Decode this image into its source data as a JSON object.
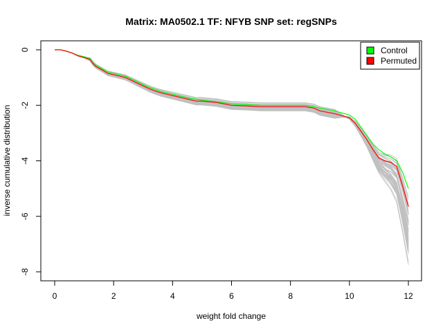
{
  "chart_data": {
    "type": "line",
    "title": "Matrix: MA0502.1 TF: NFYB SNP set: regSNPs",
    "xlabel": "weight fold change",
    "ylabel": "inverse cumulative distribution",
    "xlim": [
      0,
      12
    ],
    "ylim": [
      -8,
      0
    ],
    "x_ticks": [
      "0",
      "2",
      "4",
      "6",
      "8",
      "10",
      "12"
    ],
    "y_ticks": [
      "0",
      "-2",
      "-4",
      "-6",
      "-8"
    ],
    "grid": false,
    "legend_position": "top-right",
    "legend": [
      {
        "label": "Control",
        "color": "#00ff00"
      },
      {
        "label": "Permuted",
        "color": "#ff0000"
      }
    ],
    "series": [
      {
        "name": "Control",
        "color": "#00ff00",
        "x": [
          0,
          0.2,
          0.4,
          0.6,
          0.8,
          1.0,
          1.2,
          1.3,
          1.4,
          1.6,
          1.8,
          2.0,
          2.2,
          2.4,
          2.6,
          2.8,
          3.0,
          3.2,
          3.4,
          3.6,
          3.8,
          4.0,
          4.2,
          4.4,
          4.6,
          4.8,
          5.0,
          5.5,
          6.0,
          6.5,
          7.0,
          7.5,
          8.0,
          8.5,
          8.8,
          9.0,
          9.5,
          10.0,
          10.2,
          10.4,
          10.6,
          10.8,
          11.0,
          11.2,
          11.4,
          11.6,
          11.8,
          12.0
        ],
        "y": [
          0,
          0,
          -0.05,
          -0.12,
          -0.2,
          -0.25,
          -0.32,
          -0.45,
          -0.55,
          -0.68,
          -0.8,
          -0.85,
          -0.9,
          -0.95,
          -1.05,
          -1.15,
          -1.25,
          -1.35,
          -1.42,
          -1.5,
          -1.55,
          -1.6,
          -1.65,
          -1.7,
          -1.75,
          -1.78,
          -1.82,
          -1.88,
          -1.95,
          -1.98,
          -2.0,
          -2.0,
          -2.0,
          -2.0,
          -2.05,
          -2.1,
          -2.2,
          -2.35,
          -2.5,
          -2.8,
          -3.1,
          -3.4,
          -3.6,
          -3.75,
          -3.85,
          -4.0,
          -4.4,
          -5.0
        ]
      },
      {
        "name": "Permuted",
        "color": "#ff0000",
        "x": [
          0,
          0.2,
          0.4,
          0.6,
          0.8,
          1.0,
          1.2,
          1.3,
          1.4,
          1.6,
          1.8,
          2.0,
          2.2,
          2.4,
          2.6,
          2.8,
          3.0,
          3.2,
          3.4,
          3.6,
          3.8,
          4.0,
          4.2,
          4.4,
          4.6,
          4.8,
          5.0,
          5.5,
          6.0,
          6.5,
          7.0,
          7.5,
          8.0,
          8.5,
          8.8,
          9.0,
          9.5,
          10.0,
          10.2,
          10.4,
          10.6,
          10.8,
          11.0,
          11.2,
          11.4,
          11.6,
          11.8,
          12.0
        ],
        "y": [
          0,
          0,
          -0.05,
          -0.12,
          -0.22,
          -0.28,
          -0.35,
          -0.5,
          -0.6,
          -0.72,
          -0.85,
          -0.9,
          -0.95,
          -1.0,
          -1.1,
          -1.2,
          -1.3,
          -1.4,
          -1.48,
          -1.55,
          -1.6,
          -1.65,
          -1.7,
          -1.75,
          -1.8,
          -1.85,
          -1.85,
          -1.9,
          -2.0,
          -2.02,
          -2.05,
          -2.05,
          -2.05,
          -2.05,
          -2.1,
          -2.2,
          -2.3,
          -2.45,
          -2.65,
          -2.95,
          -3.25,
          -3.6,
          -3.9,
          -4.0,
          -4.05,
          -4.2,
          -4.9,
          -5.65
        ]
      }
    ]
  }
}
